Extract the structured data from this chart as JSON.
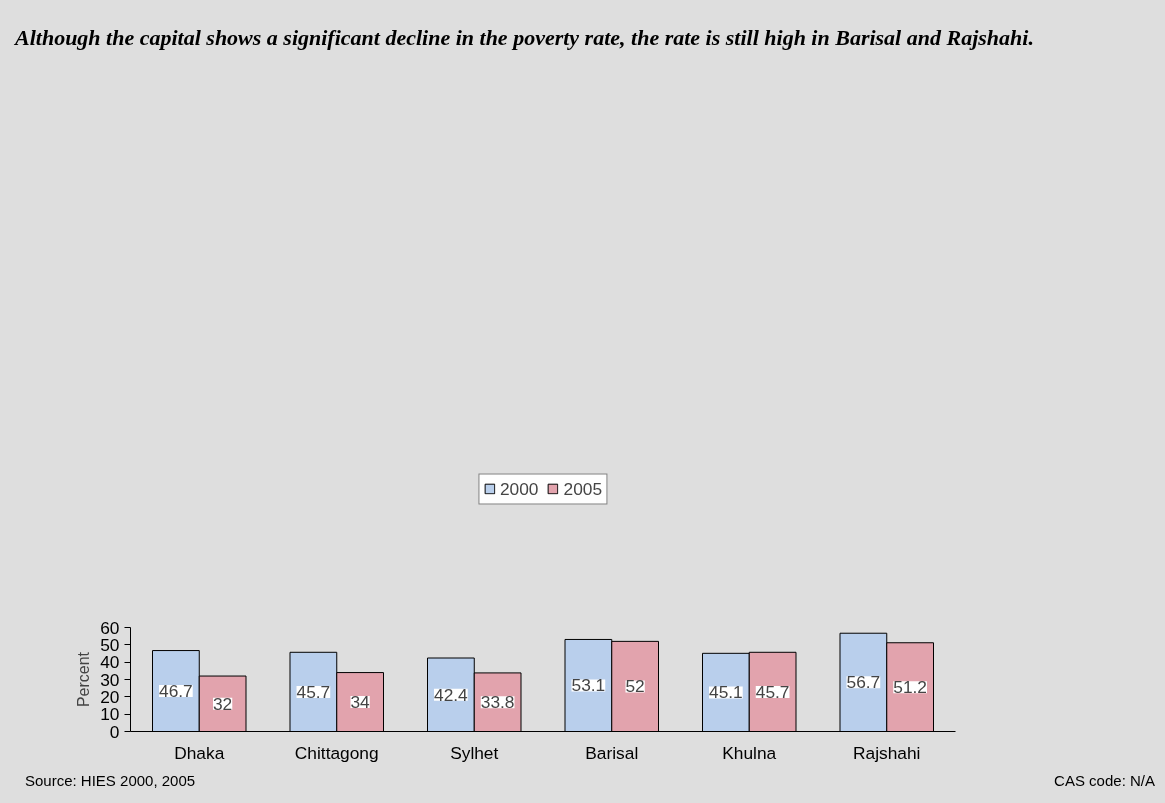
{
  "chart_data": {
    "type": "bar",
    "title": "Although the capital shows a significant decline in the poverty rate, the rate is still high in Barisal and Rajshahi.",
    "ylabel": "Percent",
    "categories": [
      "Dhaka",
      "Chittagong",
      "Sylhet",
      "Barisal",
      "Khulna",
      "Rajshahi"
    ],
    "series": [
      {
        "name": "2000",
        "color": "#b9cfec",
        "values": [
          46.7,
          45.7,
          42.4,
          53.1,
          45.1,
          56.7
        ]
      },
      {
        "name": "2005",
        "color": "#e2a3ad",
        "values": [
          32,
          34,
          33.8,
          52,
          45.7,
          51.2
        ]
      }
    ],
    "ylim": [
      0,
      60
    ],
    "yticks": [
      0,
      10,
      20,
      30,
      40,
      50,
      60
    ],
    "data_labels": true,
    "legend": "top",
    "grid": false,
    "annotations": [
      "Source: HIES 2000, 2005",
      "CAS code: N/A"
    ]
  }
}
